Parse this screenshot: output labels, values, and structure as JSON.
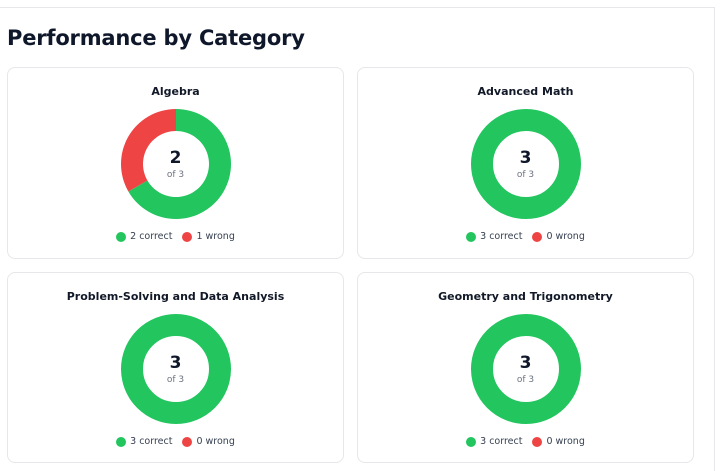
{
  "page": {
    "title": "Performance by Category"
  },
  "colors": {
    "correct": "#22c55e",
    "wrong": "#ef4444"
  },
  "categories": [
    {
      "name": "Algebra",
      "correct": 2,
      "wrong": 1,
      "center_value": "2",
      "center_total": "of 3",
      "correct_label": "2 correct",
      "wrong_label": "1 wrong"
    },
    {
      "name": "Advanced Math",
      "correct": 3,
      "wrong": 0,
      "center_value": "3",
      "center_total": "of 3",
      "correct_label": "3 correct",
      "wrong_label": "0 wrong"
    },
    {
      "name": "Problem-Solving and Data Analysis",
      "correct": 3,
      "wrong": 0,
      "center_value": "3",
      "center_total": "of 3",
      "correct_label": "3 correct",
      "wrong_label": "0 wrong"
    },
    {
      "name": "Geometry and Trigonometry",
      "correct": 3,
      "wrong": 0,
      "center_value": "3",
      "center_total": "of 3",
      "correct_label": "3 correct",
      "wrong_label": "0 wrong"
    }
  ]
}
